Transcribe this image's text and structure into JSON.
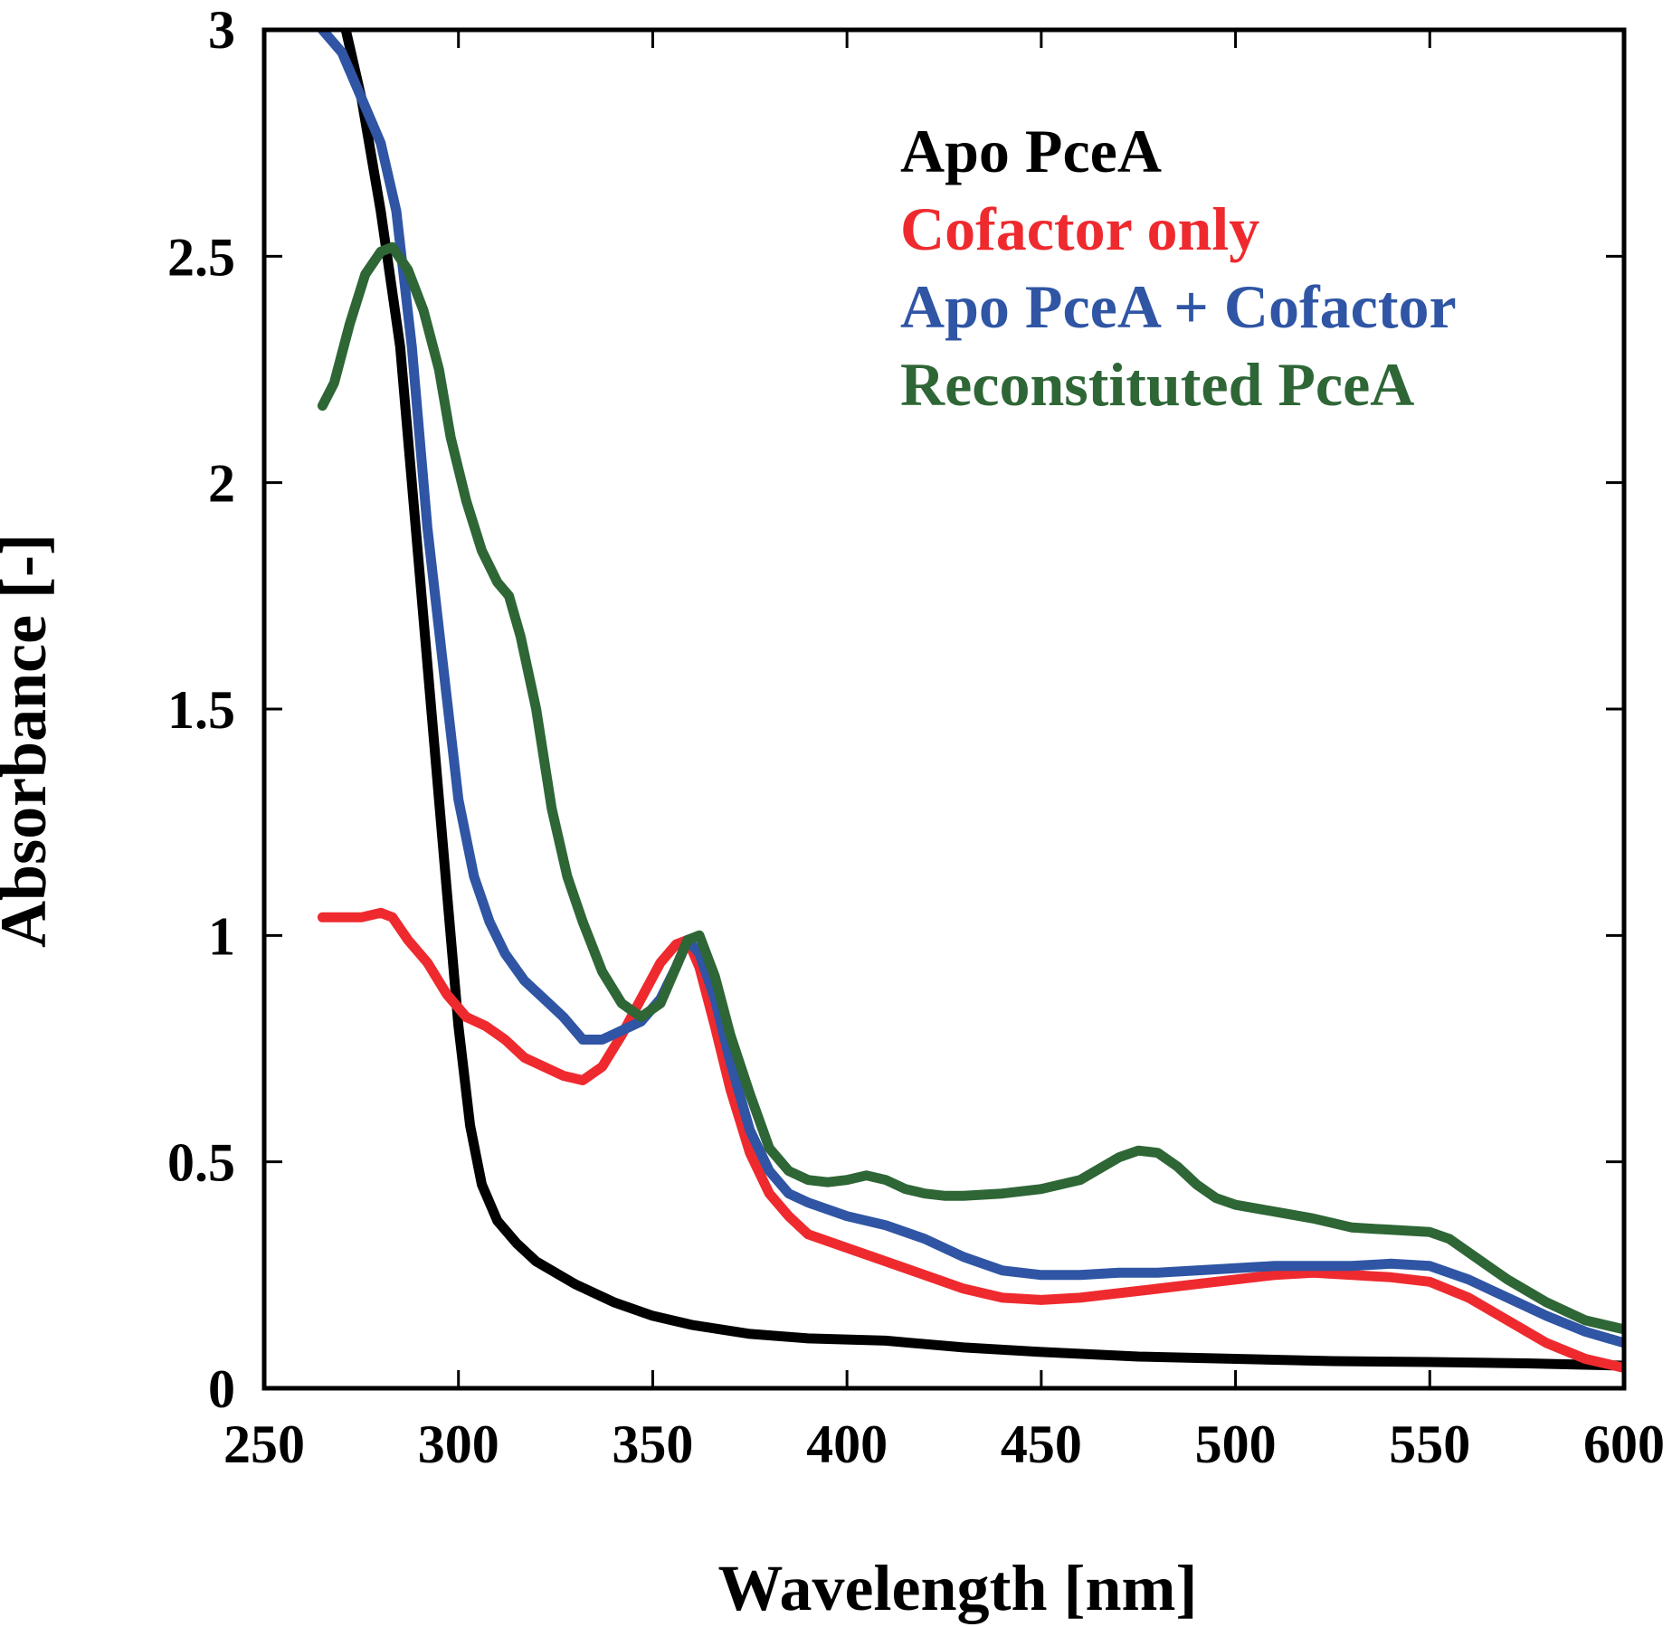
{
  "chart_data": {
    "type": "line",
    "title": "",
    "xlabel": "Wavelength [nm]",
    "ylabel": "Absorbance [-]",
    "xlim": [
      250,
      600
    ],
    "ylim": [
      0,
      3
    ],
    "x_ticks": [
      250,
      300,
      350,
      400,
      450,
      500,
      550,
      600
    ],
    "x_tick_labels": [
      "250",
      "300",
      "350",
      "400",
      "450",
      "500",
      "550",
      "600"
    ],
    "y_ticks": [
      0,
      0.5,
      1,
      1.5,
      2,
      2.5,
      3
    ],
    "y_tick_labels": [
      "0",
      "0.5",
      "1",
      "1.5",
      "2",
      "2.5",
      "3"
    ],
    "grid": false,
    "legend_position": "top-right",
    "series": [
      {
        "name": "Apo PceA",
        "color": "#000000",
        "points": [
          [
            271,
            3.0
          ],
          [
            275,
            2.85
          ],
          [
            280,
            2.6
          ],
          [
            285,
            2.3
          ],
          [
            290,
            1.8
          ],
          [
            295,
            1.3
          ],
          [
            300,
            0.8
          ],
          [
            303,
            0.58
          ],
          [
            306,
            0.45
          ],
          [
            310,
            0.37
          ],
          [
            315,
            0.32
          ],
          [
            320,
            0.28
          ],
          [
            330,
            0.23
          ],
          [
            340,
            0.19
          ],
          [
            350,
            0.16
          ],
          [
            360,
            0.14
          ],
          [
            375,
            0.12
          ],
          [
            390,
            0.11
          ],
          [
            410,
            0.105
          ],
          [
            430,
            0.09
          ],
          [
            450,
            0.08
          ],
          [
            475,
            0.07
          ],
          [
            500,
            0.065
          ],
          [
            525,
            0.06
          ],
          [
            550,
            0.058
          ],
          [
            575,
            0.055
          ],
          [
            600,
            0.05
          ]
        ]
      },
      {
        "name": "Cofactor only",
        "color": "#ee2a2f",
        "points": [
          [
            265,
            1.04
          ],
          [
            270,
            1.04
          ],
          [
            275,
            1.04
          ],
          [
            280,
            1.05
          ],
          [
            283,
            1.04
          ],
          [
            287,
            0.99
          ],
          [
            292,
            0.94
          ],
          [
            297,
            0.87
          ],
          [
            302,
            0.82
          ],
          [
            307,
            0.8
          ],
          [
            312,
            0.77
          ],
          [
            317,
            0.73
          ],
          [
            322,
            0.71
          ],
          [
            327,
            0.69
          ],
          [
            332,
            0.68
          ],
          [
            337,
            0.71
          ],
          [
            342,
            0.78
          ],
          [
            347,
            0.86
          ],
          [
            352,
            0.94
          ],
          [
            356,
            0.98
          ],
          [
            359,
            0.99
          ],
          [
            362,
            0.93
          ],
          [
            366,
            0.8
          ],
          [
            370,
            0.66
          ],
          [
            375,
            0.52
          ],
          [
            380,
            0.43
          ],
          [
            385,
            0.38
          ],
          [
            390,
            0.34
          ],
          [
            400,
            0.31
          ],
          [
            410,
            0.28
          ],
          [
            420,
            0.25
          ],
          [
            430,
            0.22
          ],
          [
            440,
            0.2
          ],
          [
            450,
            0.195
          ],
          [
            460,
            0.2
          ],
          [
            470,
            0.21
          ],
          [
            480,
            0.22
          ],
          [
            490,
            0.23
          ],
          [
            500,
            0.24
          ],
          [
            510,
            0.25
          ],
          [
            520,
            0.255
          ],
          [
            530,
            0.25
          ],
          [
            540,
            0.245
          ],
          [
            550,
            0.235
          ],
          [
            560,
            0.2
          ],
          [
            570,
            0.15
          ],
          [
            580,
            0.1
          ],
          [
            590,
            0.065
          ],
          [
            600,
            0.045
          ]
        ]
      },
      {
        "name": "Apo PceA + Cofactor",
        "color": "#2f55a4",
        "points": [
          [
            265,
            3.0
          ],
          [
            270,
            2.95
          ],
          [
            275,
            2.85
          ],
          [
            280,
            2.75
          ],
          [
            284,
            2.6
          ],
          [
            288,
            2.3
          ],
          [
            292,
            1.9
          ],
          [
            296,
            1.6
          ],
          [
            300,
            1.3
          ],
          [
            304,
            1.13
          ],
          [
            308,
            1.03
          ],
          [
            312,
            0.96
          ],
          [
            317,
            0.9
          ],
          [
            322,
            0.86
          ],
          [
            327,
            0.82
          ],
          [
            332,
            0.77
          ],
          [
            337,
            0.77
          ],
          [
            342,
            0.79
          ],
          [
            347,
            0.81
          ],
          [
            352,
            0.86
          ],
          [
            356,
            0.93
          ],
          [
            359,
            0.99
          ],
          [
            362,
            0.96
          ],
          [
            366,
            0.86
          ],
          [
            370,
            0.72
          ],
          [
            375,
            0.57
          ],
          [
            380,
            0.48
          ],
          [
            385,
            0.43
          ],
          [
            390,
            0.41
          ],
          [
            400,
            0.38
          ],
          [
            410,
            0.36
          ],
          [
            420,
            0.33
          ],
          [
            430,
            0.29
          ],
          [
            440,
            0.26
          ],
          [
            450,
            0.25
          ],
          [
            460,
            0.25
          ],
          [
            470,
            0.255
          ],
          [
            480,
            0.255
          ],
          [
            490,
            0.26
          ],
          [
            500,
            0.265
          ],
          [
            510,
            0.27
          ],
          [
            520,
            0.27
          ],
          [
            530,
            0.27
          ],
          [
            540,
            0.275
          ],
          [
            550,
            0.27
          ],
          [
            560,
            0.24
          ],
          [
            570,
            0.2
          ],
          [
            580,
            0.16
          ],
          [
            590,
            0.125
          ],
          [
            600,
            0.1
          ]
        ]
      },
      {
        "name": "Reconstituted PceA",
        "color": "#2e6636",
        "points": [
          [
            265,
            2.17
          ],
          [
            268,
            2.22
          ],
          [
            272,
            2.35
          ],
          [
            276,
            2.46
          ],
          [
            280,
            2.51
          ],
          [
            283,
            2.52
          ],
          [
            287,
            2.47
          ],
          [
            291,
            2.38
          ],
          [
            295,
            2.25
          ],
          [
            298,
            2.1
          ],
          [
            302,
            1.96
          ],
          [
            306,
            1.85
          ],
          [
            310,
            1.78
          ],
          [
            313,
            1.75
          ],
          [
            316,
            1.66
          ],
          [
            320,
            1.5
          ],
          [
            324,
            1.28
          ],
          [
            328,
            1.13
          ],
          [
            332,
            1.03
          ],
          [
            337,
            0.92
          ],
          [
            342,
            0.85
          ],
          [
            347,
            0.82
          ],
          [
            352,
            0.85
          ],
          [
            356,
            0.93
          ],
          [
            359,
            0.99
          ],
          [
            362,
            1.0
          ],
          [
            366,
            0.91
          ],
          [
            370,
            0.78
          ],
          [
            375,
            0.65
          ],
          [
            380,
            0.53
          ],
          [
            385,
            0.48
          ],
          [
            390,
            0.46
          ],
          [
            395,
            0.455
          ],
          [
            400,
            0.46
          ],
          [
            405,
            0.47
          ],
          [
            410,
            0.46
          ],
          [
            415,
            0.44
          ],
          [
            420,
            0.43
          ],
          [
            425,
            0.425
          ],
          [
            430,
            0.425
          ],
          [
            440,
            0.43
          ],
          [
            450,
            0.44
          ],
          [
            460,
            0.46
          ],
          [
            470,
            0.51
          ],
          [
            475,
            0.525
          ],
          [
            480,
            0.52
          ],
          [
            485,
            0.49
          ],
          [
            490,
            0.45
          ],
          [
            495,
            0.42
          ],
          [
            500,
            0.405
          ],
          [
            510,
            0.39
          ],
          [
            520,
            0.375
          ],
          [
            530,
            0.355
          ],
          [
            540,
            0.35
          ],
          [
            550,
            0.345
          ],
          [
            555,
            0.33
          ],
          [
            560,
            0.3
          ],
          [
            570,
            0.24
          ],
          [
            580,
            0.19
          ],
          [
            590,
            0.15
          ],
          [
            600,
            0.13
          ]
        ]
      }
    ]
  }
}
